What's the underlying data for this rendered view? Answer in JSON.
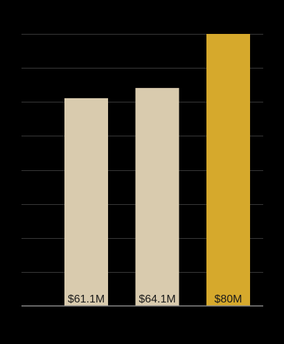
{
  "chart_data": {
    "type": "bar",
    "categories": [
      "",
      "",
      ""
    ],
    "values": [
      61.1,
      64.1,
      80
    ],
    "data_labels": [
      "$61.1M",
      "$64.1M",
      "$80M"
    ],
    "title": "",
    "xlabel": "",
    "ylabel": "",
    "ylim": [
      0,
      80
    ],
    "grid": true,
    "legend": "none",
    "colors": {
      "default_bar": "#D9CBAE",
      "highlight_bar": "#D6A92C",
      "background": "#000000",
      "gridline": "#3a3a3a",
      "baseline": "#8a8a8a",
      "label_text": "#1a1a1a"
    },
    "highlight_index": 2
  }
}
